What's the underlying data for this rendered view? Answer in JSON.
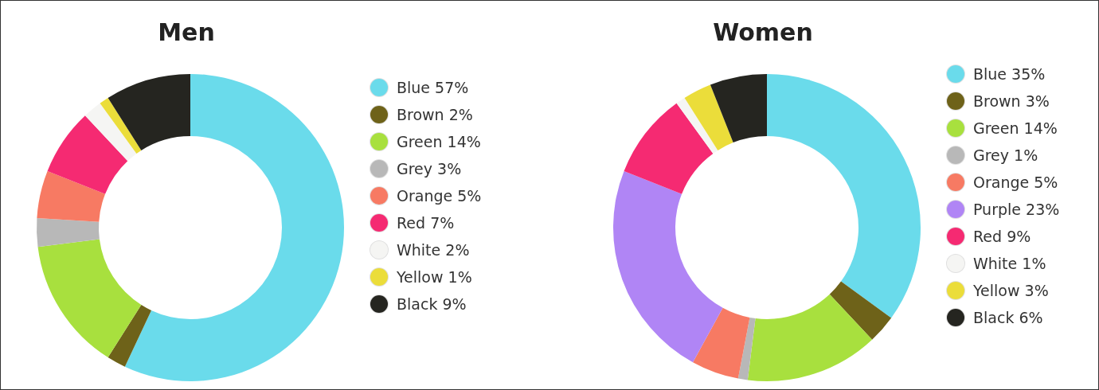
{
  "chart_data": [
    {
      "type": "donut",
      "title": "Men",
      "categories": [
        "Blue",
        "Brown",
        "Green",
        "Grey",
        "Orange",
        "Red",
        "White",
        "Yellow",
        "Black"
      ],
      "values": [
        57,
        2,
        14,
        3,
        5,
        7,
        2,
        1,
        9
      ],
      "value_labels": [
        "57%",
        "2%",
        "14%",
        "3%",
        "5%",
        "7%",
        "2%",
        "1%",
        "9%"
      ],
      "colors": [
        "#6adbeb",
        "#6e6219",
        "#a8e03e",
        "#b8b8b8",
        "#f77a63",
        "#f52a72",
        "#f5f5f3",
        "#ebdd3a",
        "#252520"
      ],
      "legend": "right"
    },
    {
      "type": "donut",
      "title": "Women",
      "categories": [
        "Blue",
        "Brown",
        "Green",
        "Grey",
        "Orange",
        "Purple",
        "Red",
        "White",
        "Yellow",
        "Black"
      ],
      "values": [
        35,
        3,
        14,
        1,
        5,
        23,
        9,
        1,
        3,
        6
      ],
      "value_labels": [
        "35%",
        "3%",
        "14%",
        "1%",
        "5%",
        "23%",
        "9%",
        "1%",
        "3%",
        "6%"
      ],
      "colors": [
        "#6adbeb",
        "#6e6219",
        "#a8e03e",
        "#b8b8b8",
        "#f77a63",
        "#b085f5",
        "#f52a72",
        "#f5f5f3",
        "#ebdd3a",
        "#252520"
      ],
      "legend": "right"
    }
  ]
}
